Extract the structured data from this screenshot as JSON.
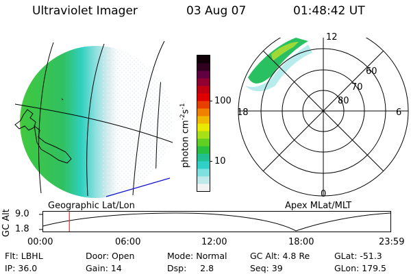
{
  "header": {
    "instrument": "Ultraviolet Imager",
    "date": "03 Aug 07",
    "time": "01:48:42 UT"
  },
  "colorbar": {
    "unit_label": "photon cm",
    "unit_exp1": "-2",
    "unit_mid": "s",
    "unit_exp2": "-1",
    "ticks": [
      "100",
      "10"
    ],
    "colors": [
      "#f2f2f2",
      "#bfe8e8",
      "#7fe0e0",
      "#2fd0c8",
      "#20c090",
      "#28c040",
      "#60d020",
      "#a8e018",
      "#e8e800",
      "#f0b800",
      "#f08000",
      "#e84000",
      "#e00000",
      "#c00010",
      "#900030",
      "#600040",
      "#300020",
      "#100008"
    ]
  },
  "geo_map": {
    "caption": "Geographic Lat/Lon"
  },
  "polar_map": {
    "caption": "Apex MLat/MLT",
    "mlt_labels": {
      "top": "12",
      "bottom": "0",
      "left": "18",
      "right": "6"
    },
    "mlat_labels": [
      "60",
      "70",
      "80"
    ]
  },
  "timeline": {
    "ylabel": "GC Alt",
    "ymax": "9.0",
    "ymin": "1.8",
    "times": [
      "00:00",
      "06:00",
      "12:00",
      "18:00",
      "23:59"
    ],
    "current_time_hours": 1.81
  },
  "info": {
    "flt": "Flt: LBHL",
    "ip": "IP: 36.0",
    "door": "Door: Open",
    "gain": "Gain: 14",
    "mode": "Mode: Normal",
    "dsp": "Dsp:     2.8",
    "gcalt": "GC Alt: 4.8 Re",
    "seq": "Seq: 39",
    "glat": "GLat: -51.3",
    "glon": "GLon: 179.5"
  }
}
